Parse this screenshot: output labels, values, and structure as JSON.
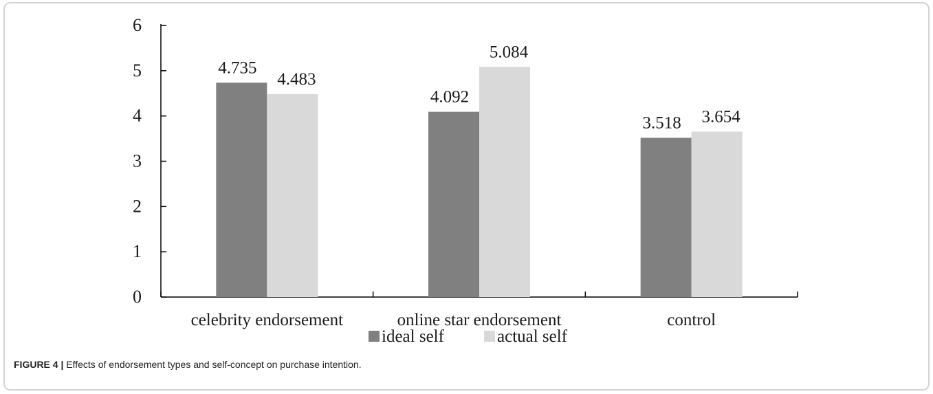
{
  "chart_data": {
    "type": "bar",
    "categories": [
      "celebrity endorsement",
      "online star endorsement",
      "control"
    ],
    "series": [
      {
        "name": "ideal self",
        "values": [
          4.735,
          4.092,
          3.518
        ],
        "labels": [
          "4.735",
          "4.092",
          "3.518"
        ],
        "color": "#808080"
      },
      {
        "name": "actual self",
        "values": [
          4.483,
          5.084,
          3.654
        ],
        "labels": [
          "4.483",
          "5.084",
          "3.654"
        ],
        "color": "#d9d9d9"
      }
    ],
    "ylim": [
      0,
      6
    ],
    "yticks": [
      "0",
      "1",
      "2",
      "3",
      "4",
      "5",
      "6"
    ],
    "grid": false,
    "legend": "bottom-center"
  },
  "caption": {
    "label": "FIGURE 4 |",
    "text": " Effects of endorsement types and self-concept on purchase intention."
  }
}
